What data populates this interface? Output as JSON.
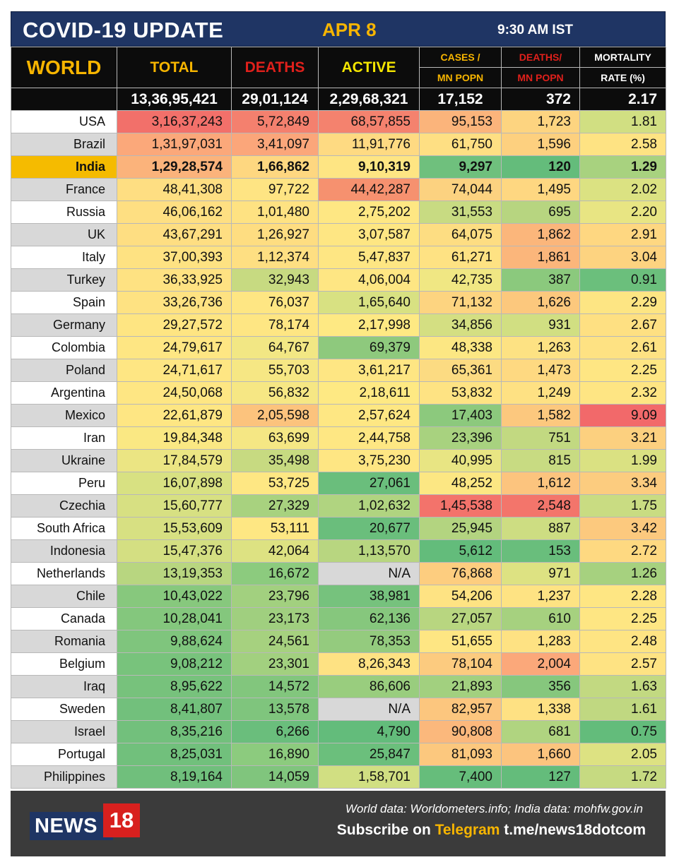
{
  "header": {
    "title": "COVID-19 UPDATE",
    "date": "APR 8",
    "time": "9:30 AM IST"
  },
  "columns": {
    "region": "WORLD",
    "total": "TOTAL",
    "deaths": "DEATHS",
    "active": "ACTIVE",
    "cases_per_mn_1": "CASES /",
    "cases_per_mn_2": "MN POPN",
    "deaths_per_mn_1": "DEATHS/",
    "deaths_per_mn_2": "MN POPN",
    "mortality_1": "MORTALITY",
    "mortality_2": "RATE (%)"
  },
  "world": {
    "total": "13,36,95,421",
    "deaths": "29,01,124",
    "active": "2,29,68,321",
    "cases_per_mn": "17,152",
    "deaths_per_mn": "372",
    "mortality": "2.17"
  },
  "rows": [
    {
      "country": "USA",
      "values": [
        "3,16,37,243",
        "5,72,849",
        "68,57,855",
        "95,153",
        "1,723",
        "1.81"
      ],
      "colors": [
        "#f2706a",
        "#f4806e",
        "#f4826e",
        "#fbb47b",
        "#fdd480",
        "#d1df82"
      ]
    },
    {
      "country": "Brazil",
      "values": [
        "1,31,97,031",
        "3,41,097",
        "11,91,776",
        "61,750",
        "1,596",
        "2.58"
      ],
      "colors": [
        "#fba87a",
        "#fba67a",
        "#feda82",
        "#fedf83",
        "#fdd07f",
        "#fee383"
      ]
    },
    {
      "country": "India",
      "values": [
        "1,29,28,574",
        "1,66,862",
        "9,10,319",
        "9,297",
        "120",
        "1.29"
      ],
      "colors": [
        "#fbb37b",
        "#fed780",
        "#fee583",
        "#6fc07d",
        "#64bc7b",
        "#a8d27f"
      ]
    },
    {
      "country": "France",
      "values": [
        "48,41,308",
        "97,722",
        "44,42,287",
        "74,044",
        "1,495",
        "2.02"
      ],
      "colors": [
        "#fede82",
        "#fee483",
        "#f6916f",
        "#fcd280",
        "#fed781",
        "#dbe282"
      ]
    },
    {
      "country": "Russia",
      "values": [
        "46,06,162",
        "1,01,480",
        "2,75,202",
        "31,553",
        "695",
        "2.20"
      ],
      "colors": [
        "#fedf82",
        "#fee282",
        "#fee783",
        "#c8db82",
        "#b7d580",
        "#e8e583"
      ]
    },
    {
      "country": "UK",
      "values": [
        "43,67,291",
        "1,26,927",
        "3,07,587",
        "64,075",
        "1,862",
        "2.91"
      ],
      "colors": [
        "#fede82",
        "#fedd81",
        "#fee683",
        "#fddd82",
        "#fbb67b",
        "#fed781"
      ]
    },
    {
      "country": "Italy",
      "values": [
        "37,00,393",
        "1,12,374",
        "5,47,837",
        "61,271",
        "1,861",
        "3.04"
      ],
      "colors": [
        "#fee282",
        "#fedf82",
        "#fee683",
        "#fee283",
        "#fbb67b",
        "#fdd380"
      ]
    },
    {
      "country": "Turkey",
      "values": [
        "36,33,925",
        "32,943",
        "4,06,004",
        "42,735",
        "387",
        "0.91"
      ],
      "colors": [
        "#fee282",
        "#c7da81",
        "#fee683",
        "#f0e783",
        "#8bc97d",
        "#6bbf7c"
      ]
    },
    {
      "country": "Spain",
      "values": [
        "33,26,736",
        "76,037",
        "1,65,640",
        "71,132",
        "1,626",
        "2.29"
      ],
      "colors": [
        "#fee282",
        "#fee683",
        "#d8e182",
        "#fdd480",
        "#fcc87d",
        "#fde583"
      ]
    },
    {
      "country": "Germany",
      "values": [
        "29,27,572",
        "78,174",
        "2,17,998",
        "34,856",
        "931",
        "2.67"
      ],
      "colors": [
        "#fee582",
        "#fee683",
        "#fee983",
        "#d4df82",
        "#d1df82",
        "#fee082"
      ]
    },
    {
      "country": "Colombia",
      "values": [
        "24,79,617",
        "64,767",
        "69,379",
        "48,338",
        "1,263",
        "2.61"
      ],
      "colors": [
        "#fee683",
        "#f2e784",
        "#8ec97d",
        "#fce783",
        "#fde283",
        "#fee283"
      ]
    },
    {
      "country": "Poland",
      "values": [
        "24,71,617",
        "55,703",
        "3,61,217",
        "65,361",
        "1,473",
        "2.25"
      ],
      "colors": [
        "#fee683",
        "#f6e784",
        "#fee683",
        "#fcdb82",
        "#fed981",
        "#fee683"
      ]
    },
    {
      "country": "Argentina",
      "values": [
        "24,50,068",
        "56,832",
        "2,18,611",
        "53,832",
        "1,249",
        "2.32"
      ],
      "colors": [
        "#fee683",
        "#f6e784",
        "#fee983",
        "#fee383",
        "#fee183",
        "#fee583"
      ]
    },
    {
      "country": "Mexico",
      "values": [
        "22,61,879",
        "2,05,598",
        "2,57,624",
        "17,403",
        "1,582",
        "9.09"
      ],
      "colors": [
        "#fee683",
        "#fcc37d",
        "#fee783",
        "#8cc97d",
        "#fcc87e",
        "#f2696a"
      ]
    },
    {
      "country": "Iran",
      "values": [
        "19,84,348",
        "63,699",
        "2,44,758",
        "23,396",
        "751",
        "3.21"
      ],
      "colors": [
        "#fae883",
        "#f5e784",
        "#fee783",
        "#a8d27f",
        "#c2d981",
        "#fcd07f"
      ]
    },
    {
      "country": "Ukraine",
      "values": [
        "17,84,579",
        "35,498",
        "3,75,230",
        "40,995",
        "815",
        "1.99"
      ],
      "colors": [
        "#ebe583",
        "#c7da81",
        "#fee683",
        "#e8e583",
        "#c8db82",
        "#dae182"
      ]
    },
    {
      "country": "Peru",
      "values": [
        "16,07,898",
        "53,725",
        "27,061",
        "48,252",
        "1,612",
        "3.34"
      ],
      "colors": [
        "#d8e182",
        "#fee783",
        "#6abe7c",
        "#fce783",
        "#fcc47e",
        "#fccc7f"
      ]
    },
    {
      "country": "Czechia",
      "values": [
        "15,60,777",
        "27,329",
        "1,02,632",
        "1,45,538",
        "2,548",
        "1.75"
      ],
      "colors": [
        "#d7e082",
        "#a8d27f",
        "#b0d480",
        "#f3736b",
        "#f3756b",
        "#c9dc82"
      ]
    },
    {
      "country": "South Africa",
      "values": [
        "15,53,609",
        "53,111",
        "20,677",
        "25,945",
        "887",
        "3.42"
      ],
      "colors": [
        "#d7e082",
        "#fee783",
        "#6abe7c",
        "#b3d480",
        "#cddd82",
        "#fcc97e"
      ]
    },
    {
      "country": "Indonesia",
      "values": [
        "15,47,376",
        "42,064",
        "1,13,570",
        "5,612",
        "153",
        "2.72"
      ],
      "colors": [
        "#d4df82",
        "#dde282",
        "#b8d680",
        "#63bc7b",
        "#69be7c",
        "#fed981"
      ]
    },
    {
      "country": "Netherlands",
      "values": [
        "13,19,353",
        "16,672",
        "N/A",
        "76,868",
        "971",
        "1.26"
      ],
      "colors": [
        "#b8d680",
        "#8ccb7e",
        "#d8d8d8",
        "#fdcd7f",
        "#dde282",
        "#a6d17f"
      ]
    },
    {
      "country": "Chile",
      "values": [
        "10,43,022",
        "23,796",
        "38,981",
        "54,206",
        "1,237",
        "2.28"
      ],
      "colors": [
        "#87c87d",
        "#a2d07f",
        "#76c27d",
        "#fee383",
        "#fee383",
        "#fee683"
      ]
    },
    {
      "country": "Canada",
      "values": [
        "10,28,041",
        "23,173",
        "62,136",
        "27,057",
        "610",
        "2.25"
      ],
      "colors": [
        "#84c77d",
        "#a0cf7f",
        "#86c77d",
        "#b8d680",
        "#a6d17f",
        "#fee683"
      ]
    },
    {
      "country": "Romania",
      "values": [
        "9,88,624",
        "24,561",
        "78,353",
        "51,655",
        "1,283",
        "2.48"
      ],
      "colors": [
        "#7fc57d",
        "#a6d17f",
        "#94cb7e",
        "#fee683",
        "#fee283",
        "#fee483"
      ]
    },
    {
      "country": "Belgium",
      "values": [
        "9,08,212",
        "23,301",
        "8,26,343",
        "78,104",
        "2,004",
        "2.57"
      ],
      "colors": [
        "#78c37c",
        "#a2d07f",
        "#fee283",
        "#fccb7f",
        "#fba87a",
        "#fee383"
      ]
    },
    {
      "country": "Iraq",
      "values": [
        "8,95,622",
        "14,572",
        "86,606",
        "21,893",
        "356",
        "1.63"
      ],
      "colors": [
        "#77c27c",
        "#82c67d",
        "#99cd7e",
        "#a2d07f",
        "#86c77d",
        "#c2d981"
      ]
    },
    {
      "country": "Sweden",
      "values": [
        "8,41,807",
        "13,578",
        "N/A",
        "82,957",
        "1,338",
        "1.61"
      ],
      "colors": [
        "#72c07c",
        "#7fc57d",
        "#d8d8d8",
        "#fcc67e",
        "#fee183",
        "#c0d881"
      ]
    },
    {
      "country": "Israel",
      "values": [
        "8,35,216",
        "6,266",
        "4,790",
        "90,808",
        "681",
        "0.75"
      ],
      "colors": [
        "#72c07c",
        "#6abe7c",
        "#63bc7b",
        "#fbb87c",
        "#b0d480",
        "#63bc7b"
      ]
    },
    {
      "country": "Portugal",
      "values": [
        "8,25,031",
        "16,890",
        "25,847",
        "81,093",
        "1,660",
        "2.05"
      ],
      "colors": [
        "#71c07c",
        "#8ccb7e",
        "#6bbf7c",
        "#fcc87e",
        "#fcc47e",
        "#dde282"
      ]
    },
    {
      "country": "Philippines",
      "values": [
        "8,19,164",
        "14,059",
        "1,58,701",
        "7,400",
        "127",
        "1.72"
      ],
      "colors": [
        "#70bf7c",
        "#80c57d",
        "#d1df82",
        "#66bd7b",
        "#64bc7b",
        "#c6da81"
      ]
    }
  ],
  "footer": {
    "logo_word": "NEWS",
    "logo_num": "18",
    "source": "World data: Worldometers.info; India data: mohfw.gov.in",
    "subscribe_prefix": "Subscribe on ",
    "subscribe_brand": "Telegram",
    "subscribe_link": " t.me/news18dotcom"
  }
}
